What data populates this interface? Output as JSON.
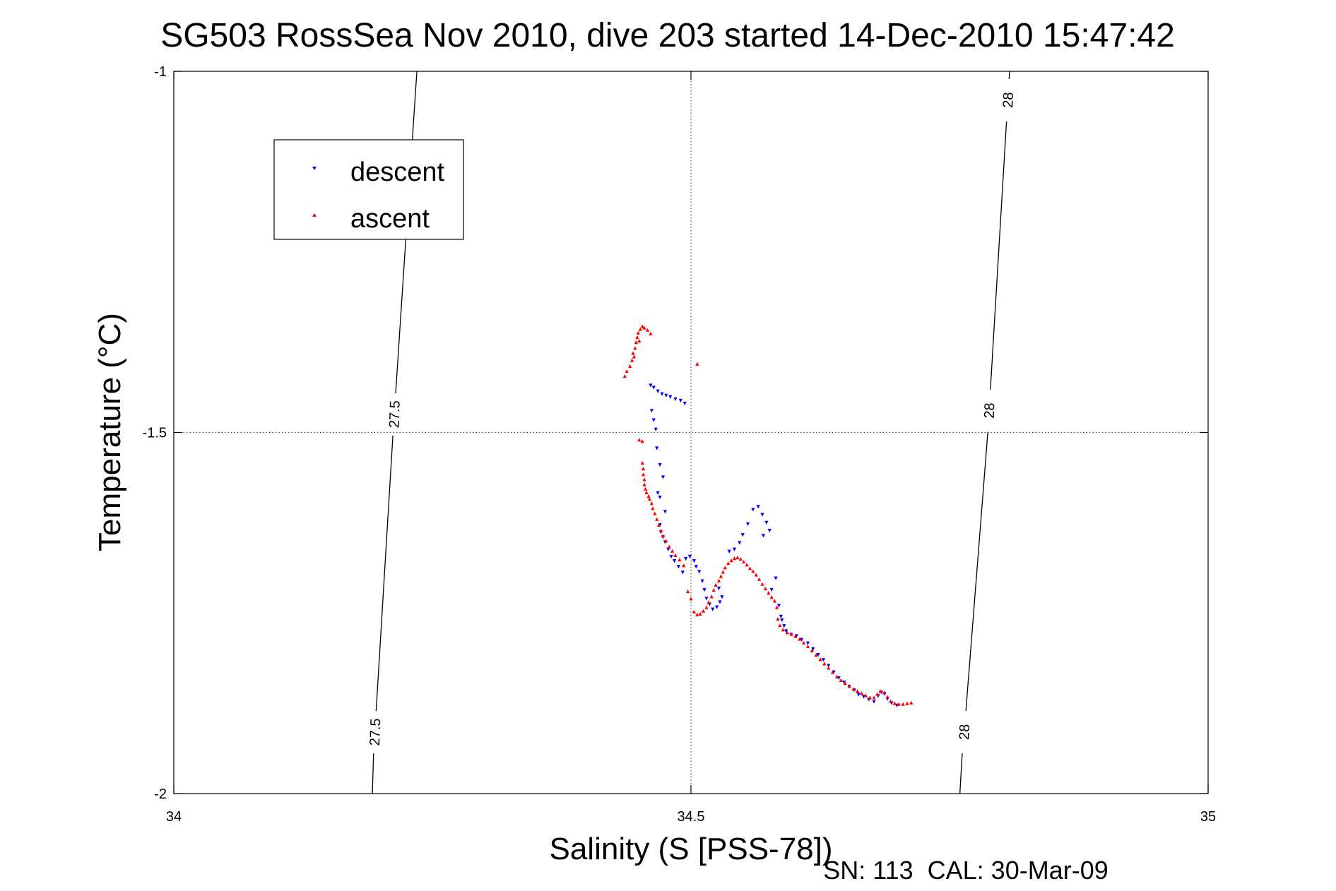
{
  "chart_data": {
    "type": "scatter",
    "title": "SG503 RossSea Nov 2010, dive 203 started 14-Dec-2010 15:47:42",
    "xlabel": "Salinity (S [PSS-78])",
    "ylabel": "Temperature (°C)",
    "footnote": "SN: 113  CAL: 30-Mar-09",
    "xlim": [
      34,
      35
    ],
    "ylim": [
      -2,
      -1
    ],
    "x_ticks": [
      "34",
      "34.5",
      "35"
    ],
    "y_ticks": [
      "-1",
      "-1.5",
      "-2"
    ],
    "grid": true,
    "legend_position": "top-left",
    "isopycnals": [
      {
        "label": "27.5",
        "points": [
          [
            34.192,
            -2.0
          ],
          [
            34.193,
            -1.95
          ],
          [
            34.195,
            -1.9
          ],
          [
            34.212,
            -1.5
          ],
          [
            34.235,
            -1.0
          ]
        ],
        "labels_at": [
          -1.915,
          -1.475
        ]
      },
      {
        "label": "28",
        "points": [
          [
            34.76,
            -2.0
          ],
          [
            34.762,
            -1.95
          ],
          [
            34.765,
            -1.9
          ],
          [
            34.787,
            -1.5
          ],
          [
            34.808,
            -1.0
          ]
        ],
        "labels_at": [
          -1.915,
          -1.47,
          -1.04
        ]
      }
    ],
    "series": [
      {
        "name": "descent",
        "color": "#0000ff",
        "marker": "triangle-down",
        "points": [
          [
            34.461,
            -1.435
          ],
          [
            34.464,
            -1.438
          ],
          [
            34.468,
            -1.443
          ],
          [
            34.472,
            -1.447
          ],
          [
            34.476,
            -1.449
          ],
          [
            34.48,
            -1.451
          ],
          [
            34.485,
            -1.454
          ],
          [
            34.49,
            -1.456
          ],
          [
            34.494,
            -1.46
          ],
          [
            34.462,
            -1.47
          ],
          [
            34.464,
            -1.483
          ],
          [
            34.466,
            -1.496
          ],
          [
            34.467,
            -1.522
          ],
          [
            34.47,
            -1.545
          ],
          [
            34.473,
            -1.562
          ],
          [
            34.468,
            -1.584
          ],
          [
            34.47,
            -1.59
          ],
          [
            34.475,
            -1.61
          ],
          [
            34.47,
            -1.628
          ],
          [
            34.471,
            -1.638
          ],
          [
            34.473,
            -1.645
          ],
          [
            34.475,
            -1.652
          ],
          [
            34.478,
            -1.662
          ],
          [
            34.481,
            -1.672
          ],
          [
            34.484,
            -1.678
          ],
          [
            34.488,
            -1.686
          ],
          [
            34.492,
            -1.694
          ],
          [
            34.495,
            -1.675
          ],
          [
            34.499,
            -1.672
          ],
          [
            34.503,
            -1.678
          ],
          [
            34.505,
            -1.686
          ],
          [
            34.508,
            -1.693
          ],
          [
            34.511,
            -1.706
          ],
          [
            34.513,
            -1.718
          ],
          [
            34.515,
            -1.73
          ],
          [
            34.518,
            -1.738
          ],
          [
            34.521,
            -1.745
          ],
          [
            34.525,
            -1.742
          ],
          [
            34.528,
            -1.735
          ],
          [
            34.53,
            -1.728
          ],
          [
            34.527,
            -1.716
          ],
          [
            34.537,
            -1.665
          ],
          [
            34.542,
            -1.662
          ],
          [
            34.547,
            -1.653
          ],
          [
            34.55,
            -1.642
          ],
          [
            34.555,
            -1.627
          ],
          [
            34.56,
            -1.607
          ],
          [
            34.565,
            -1.603
          ],
          [
            34.569,
            -1.614
          ],
          [
            34.573,
            -1.625
          ],
          [
            34.576,
            -1.636
          ],
          [
            34.57,
            -1.643
          ],
          [
            34.578,
            -1.718
          ],
          [
            34.582,
            -1.702
          ],
          [
            34.585,
            -1.74
          ],
          [
            34.587,
            -1.755
          ],
          [
            34.588,
            -1.76
          ],
          [
            34.59,
            -1.768
          ],
          [
            34.592,
            -1.775
          ],
          [
            34.597,
            -1.78
          ],
          [
            34.602,
            -1.782
          ],
          [
            34.607,
            -1.787
          ],
          [
            34.613,
            -1.792
          ],
          [
            34.618,
            -1.8
          ],
          [
            34.623,
            -1.808
          ],
          [
            34.628,
            -1.815
          ],
          [
            34.633,
            -1.823
          ],
          [
            34.638,
            -1.832
          ],
          [
            34.643,
            -1.84
          ],
          [
            34.648,
            -1.846
          ],
          [
            34.653,
            -1.852
          ],
          [
            34.658,
            -1.857
          ],
          [
            34.662,
            -1.863
          ],
          [
            34.667,
            -1.866
          ],
          [
            34.672,
            -1.87
          ],
          [
            34.677,
            -1.873
          ],
          [
            34.681,
            -1.865
          ],
          [
            34.684,
            -1.86
          ],
          [
            34.687,
            -1.862
          ],
          [
            34.69,
            -1.869
          ],
          [
            34.694,
            -1.875
          ],
          [
            34.699,
            -1.878
          ]
        ]
      },
      {
        "name": "ascent",
        "color": "#ff0000",
        "marker": "triangle-up",
        "points": [
          [
            34.436,
            -1.422
          ],
          [
            34.438,
            -1.415
          ],
          [
            34.441,
            -1.408
          ],
          [
            34.443,
            -1.4
          ],
          [
            34.444,
            -1.39
          ],
          [
            34.446,
            -1.383
          ],
          [
            34.447,
            -1.375
          ],
          [
            34.448,
            -1.368
          ],
          [
            34.449,
            -1.362
          ],
          [
            34.451,
            -1.357
          ],
          [
            34.453,
            -1.353
          ],
          [
            34.455,
            -1.355
          ],
          [
            34.458,
            -1.358
          ],
          [
            34.461,
            -1.363
          ],
          [
            34.45,
            -1.373
          ],
          [
            34.445,
            -1.395
          ],
          [
            34.506,
            -1.405
          ],
          [
            34.45,
            -1.51
          ],
          [
            34.453,
            -1.512
          ],
          [
            34.453,
            -1.542
          ],
          [
            34.454,
            -1.55
          ],
          [
            34.454,
            -1.558
          ],
          [
            34.455,
            -1.565
          ],
          [
            34.455,
            -1.572
          ],
          [
            34.456,
            -1.578
          ],
          [
            34.457,
            -1.583
          ],
          [
            34.459,
            -1.588
          ],
          [
            34.46,
            -1.592
          ],
          [
            34.462,
            -1.598
          ],
          [
            34.463,
            -1.605
          ],
          [
            34.465,
            -1.612
          ],
          [
            34.467,
            -1.62
          ],
          [
            34.469,
            -1.628
          ],
          [
            34.471,
            -1.636
          ],
          [
            34.473,
            -1.643
          ],
          [
            34.476,
            -1.65
          ],
          [
            34.479,
            -1.658
          ],
          [
            34.482,
            -1.664
          ],
          [
            34.485,
            -1.67
          ],
          [
            34.489,
            -1.676
          ],
          [
            34.493,
            -1.684
          ],
          [
            34.497,
            -1.72
          ],
          [
            34.5,
            -1.73
          ],
          [
            34.503,
            -1.748
          ],
          [
            34.506,
            -1.752
          ],
          [
            34.509,
            -1.751
          ],
          [
            34.512,
            -1.747
          ],
          [
            34.515,
            -1.742
          ],
          [
            34.517,
            -1.735
          ],
          [
            34.52,
            -1.727
          ],
          [
            34.522,
            -1.718
          ],
          [
            34.524,
            -1.711
          ],
          [
            34.527,
            -1.705
          ],
          [
            34.529,
            -1.699
          ],
          [
            34.531,
            -1.693
          ],
          [
            34.533,
            -1.687
          ],
          [
            34.536,
            -1.681
          ],
          [
            34.539,
            -1.677
          ],
          [
            34.542,
            -1.674
          ],
          [
            34.545,
            -1.673
          ],
          [
            34.548,
            -1.675
          ],
          [
            34.551,
            -1.679
          ],
          [
            34.554,
            -1.683
          ],
          [
            34.557,
            -1.688
          ],
          [
            34.56,
            -1.692
          ],
          [
            34.563,
            -1.697
          ],
          [
            34.566,
            -1.703
          ],
          [
            34.569,
            -1.71
          ],
          [
            34.572,
            -1.716
          ],
          [
            34.575,
            -1.722
          ],
          [
            34.578,
            -1.728
          ],
          [
            34.581,
            -1.733
          ],
          [
            34.583,
            -1.742
          ],
          [
            34.584,
            -1.758
          ],
          [
            34.586,
            -1.767
          ],
          [
            34.589,
            -1.773
          ],
          [
            34.593,
            -1.777
          ],
          [
            34.597,
            -1.779
          ],
          [
            34.601,
            -1.782
          ],
          [
            34.605,
            -1.786
          ],
          [
            34.609,
            -1.791
          ],
          [
            34.613,
            -1.796
          ],
          [
            34.617,
            -1.802
          ],
          [
            34.621,
            -1.808
          ],
          [
            34.625,
            -1.814
          ],
          [
            34.629,
            -1.82
          ],
          [
            34.633,
            -1.826
          ],
          [
            34.637,
            -1.832
          ],
          [
            34.641,
            -1.838
          ],
          [
            34.645,
            -1.843
          ],
          [
            34.649,
            -1.847
          ],
          [
            34.653,
            -1.851
          ],
          [
            34.657,
            -1.855
          ],
          [
            34.661,
            -1.858
          ],
          [
            34.665,
            -1.861
          ],
          [
            34.669,
            -1.864
          ],
          [
            34.673,
            -1.867
          ],
          [
            34.677,
            -1.867
          ],
          [
            34.68,
            -1.862
          ],
          [
            34.683,
            -1.858
          ],
          [
            34.687,
            -1.86
          ],
          [
            34.69,
            -1.866
          ],
          [
            34.693,
            -1.872
          ],
          [
            34.697,
            -1.875
          ],
          [
            34.701,
            -1.876
          ],
          [
            34.705,
            -1.876
          ],
          [
            34.709,
            -1.875
          ],
          [
            34.713,
            -1.874
          ]
        ]
      }
    ]
  }
}
